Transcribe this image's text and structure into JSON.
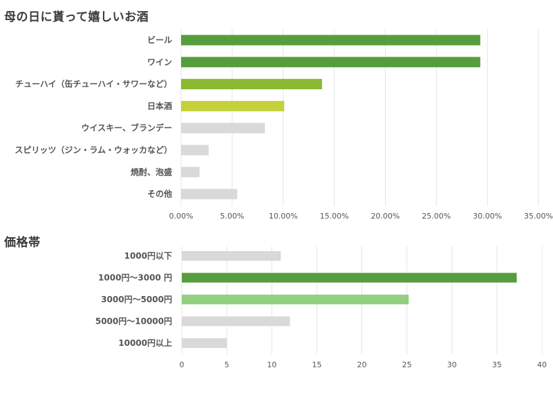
{
  "chart_data": [
    {
      "type": "bar",
      "orientation": "horizontal",
      "title": "母の日に貰って嬉しいお酒",
      "categories": [
        "ビール",
        "ワイン",
        "チューハイ（缶チューハイ・サワーなど）",
        "日本酒",
        "ウイスキー、ブランデー",
        "スピリッツ（ジン・ラム・ウォッカなど）",
        "焼酎、泡盛",
        "その他"
      ],
      "values": [
        29.3,
        29.3,
        13.8,
        10.1,
        8.2,
        2.7,
        1.8,
        5.5
      ],
      "colors": [
        "#569e3d",
        "#569e3d",
        "#8ab833",
        "#c4d13a",
        "#d9d9d9",
        "#d9d9d9",
        "#d9d9d9",
        "#d9d9d9"
      ],
      "xlim": [
        0,
        35
      ],
      "ticks": [
        0,
        5,
        10,
        15,
        20,
        25,
        30,
        35
      ],
      "tick_labels": [
        "0.00%",
        "5.00%",
        "10.00%",
        "15.00%",
        "20.00%",
        "25.00%",
        "30.00%",
        "35.00%"
      ],
      "grid": true,
      "legend": "none"
    },
    {
      "type": "bar",
      "orientation": "horizontal",
      "title": "価格帯",
      "categories": [
        "1000円以下",
        "1000円～3000 円",
        "3000円～5000円",
        "5000円～10000円",
        "10000円以上"
      ],
      "values": [
        11,
        37.2,
        25.2,
        12,
        5
      ],
      "colors": [
        "#d9d9d9",
        "#569e3d",
        "#92d07f",
        "#d9d9d9",
        "#d9d9d9"
      ],
      "xlim": [
        0,
        40
      ],
      "ticks": [
        0,
        5,
        10,
        15,
        20,
        25,
        30,
        35,
        40
      ],
      "tick_labels": [
        "0",
        "5",
        "10",
        "15",
        "20",
        "25",
        "30",
        "35",
        "40"
      ],
      "grid": true,
      "legend": "none"
    }
  ]
}
